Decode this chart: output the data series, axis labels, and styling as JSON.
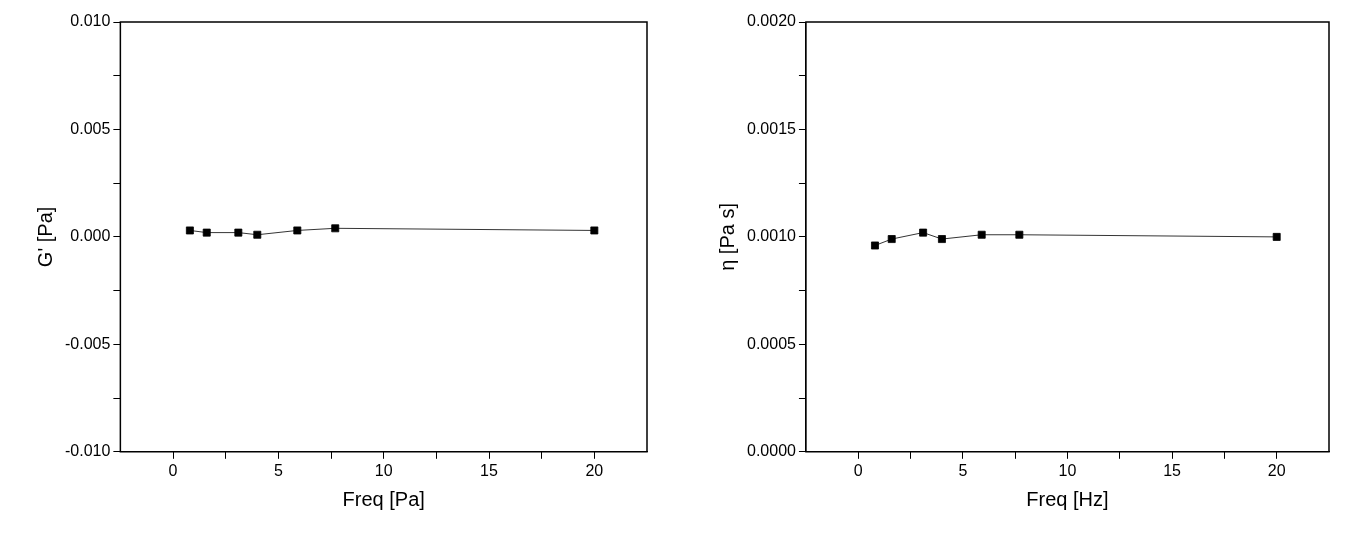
{
  "chart_data": [
    {
      "type": "line",
      "xlabel": "Freq [Pa]",
      "ylabel": "G' [Pa]",
      "marker": "square",
      "grid": false,
      "x": [
        0.8,
        1.6,
        3.1,
        4.0,
        5.9,
        7.7,
        20
      ],
      "series": [
        {
          "color": "#000000",
          "values": [
            0.0003,
            0.0002,
            0.0002,
            0.0001,
            0.0003,
            0.0004,
            0.0003
          ]
        }
      ],
      "xlim": [
        -2.5,
        22.5
      ],
      "xticks": [
        0,
        {
          "value": 2.5,
          "label": null
        },
        5,
        {
          "value": 7.5,
          "label": null
        },
        10,
        {
          "value": 12.5,
          "label": null
        },
        15,
        {
          "value": 17.5,
          "label": null
        },
        20
      ],
      "ylim": [
        -0.01,
        0.01
      ],
      "yticks": [
        {
          "value": -0.01,
          "label": "-0.010"
        },
        {
          "value": -0.0075,
          "label": null
        },
        {
          "value": -0.005,
          "label": "-0.005"
        },
        {
          "value": -0.0025,
          "label": null
        },
        {
          "value": 0,
          "label": "0.000"
        },
        {
          "value": 0.0025,
          "label": null
        },
        {
          "value": 0.005,
          "label": "0.005"
        },
        {
          "value": 0.0075,
          "label": null
        },
        {
          "value": 0.01,
          "label": "0.010"
        }
      ]
    },
    {
      "type": "line",
      "xlabel": "Freq [Hz]",
      "ylabel": "η [Pa s]",
      "marker": "square",
      "grid": false,
      "x": [
        0.8,
        1.6,
        3.1,
        4.0,
        5.9,
        7.7,
        20
      ],
      "series": [
        {
          "color": "#000000",
          "values": [
            0.00096,
            0.00099,
            0.00102,
            0.00099,
            0.00101,
            0.00101,
            0.001
          ]
        }
      ],
      "xlim": [
        -2.5,
        22.5
      ],
      "xticks": [
        0,
        {
          "value": 2.5,
          "label": null
        },
        5,
        {
          "value": 7.5,
          "label": null
        },
        10,
        {
          "value": 12.5,
          "label": null
        },
        15,
        {
          "value": 17.5,
          "label": null
        },
        20
      ],
      "ylim": [
        0,
        0.002
      ],
      "yticks": [
        {
          "value": 0,
          "label": "0.0000"
        },
        {
          "value": 0.00025,
          "label": null
        },
        {
          "value": 0.0005,
          "label": "0.0005"
        },
        {
          "value": 0.00075,
          "label": null
        },
        {
          "value": 0.001,
          "label": "0.0010"
        },
        {
          "value": 0.00125,
          "label": null
        },
        {
          "value": 0.0015,
          "label": "0.0015"
        },
        {
          "value": 0.00175,
          "label": null
        },
        {
          "value": 0.002,
          "label": "0.0020"
        }
      ]
    }
  ]
}
